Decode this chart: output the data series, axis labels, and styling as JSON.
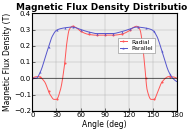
{
  "title": "Magnetic Flux Density Distribution",
  "xlabel": "Angle (deg)",
  "ylabel": "Magnetic Flux Density (T)",
  "xlim": [
    0,
    180
  ],
  "ylim": [
    -0.2,
    0.4
  ],
  "xticks": [
    0,
    30,
    60,
    90,
    120,
    150,
    180
  ],
  "yticks": [
    -0.2,
    -0.1,
    0,
    0.1,
    0.2,
    0.3,
    0.4
  ],
  "radial_color": "#FF5555",
  "parallel_color": "#5555CC",
  "background": "#FFFFFF",
  "grid_color": "#AAAAAA",
  "legend_labels": [
    "Radial",
    "Parallel"
  ],
  "title_fontsize": 6.5,
  "label_fontsize": 5.5,
  "tick_fontsize": 5
}
